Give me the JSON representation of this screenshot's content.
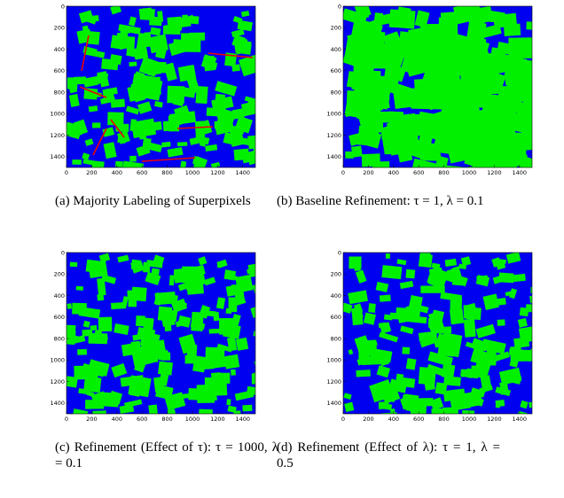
{
  "panels": [
    {
      "caption": "(a) Majority Labeling of Superpixels",
      "xlim": [
        0,
        1500
      ],
      "ylim": [
        0,
        1500
      ],
      "xticks": [
        0,
        200,
        400,
        600,
        800,
        1000,
        1200,
        1400
      ],
      "yticks": [
        0,
        200,
        400,
        600,
        800,
        1000,
        1200,
        1400
      ]
    },
    {
      "caption": "(b) Baseline Refinement: τ = 1, λ = 0.1",
      "xlim": [
        0,
        1500
      ],
      "ylim": [
        0,
        1500
      ],
      "xticks": [
        0,
        200,
        400,
        600,
        800,
        1000,
        1200,
        1400
      ],
      "yticks": [
        0,
        200,
        400,
        600,
        800,
        1000,
        1200,
        1400
      ]
    },
    {
      "caption": "(c) Refinement (Effect of τ): τ = 1000, λ = 0.1",
      "xlim": [
        0,
        1500
      ],
      "ylim": [
        0,
        1500
      ],
      "xticks": [
        0,
        200,
        400,
        600,
        800,
        1000,
        1200,
        1400
      ],
      "yticks": [
        0,
        200,
        400,
        600,
        800,
        1000,
        1200,
        1400
      ]
    },
    {
      "caption": "(d) Refinement (Effect of λ): τ = 1, λ = 0.5",
      "xlim": [
        0,
        1500
      ],
      "ylim": [
        0,
        1500
      ],
      "xticks": [
        0,
        200,
        400,
        600,
        800,
        1000,
        1200,
        1400
      ],
      "yticks": [
        0,
        200,
        400,
        600,
        800,
        1000,
        1200,
        1400
      ]
    }
  ]
}
